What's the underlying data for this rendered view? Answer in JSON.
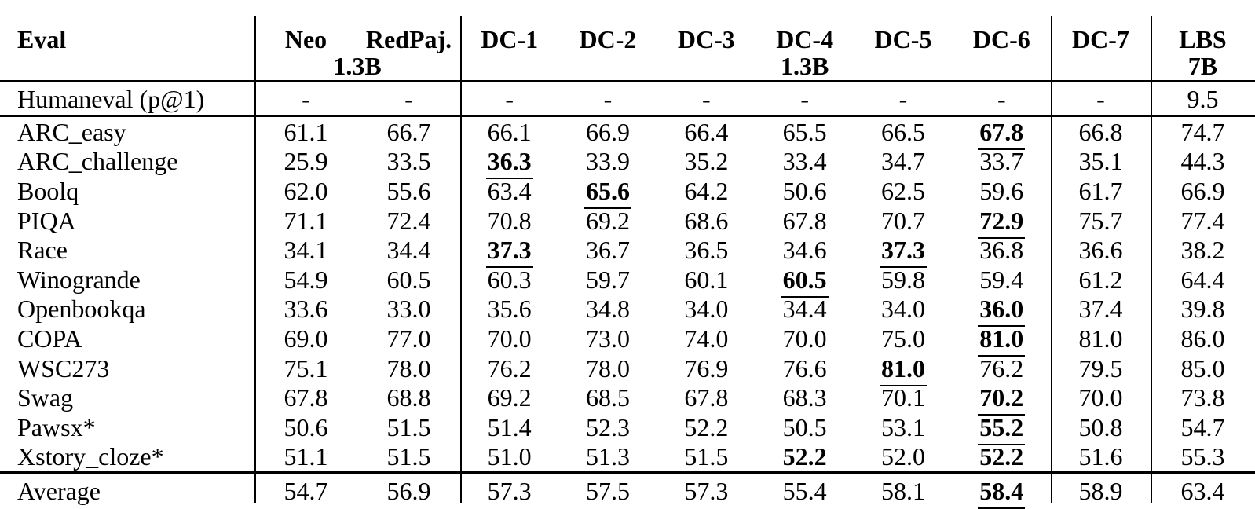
{
  "table": {
    "header": {
      "eval_label": "Eval",
      "columns": [
        {
          "label": "Neo"
        },
        {
          "label": "RedPaj."
        },
        {
          "label": "DC-1"
        },
        {
          "label": "DC-2"
        },
        {
          "label": "DC-3"
        },
        {
          "label": "DC-4"
        },
        {
          "label": "DC-5"
        },
        {
          "label": "DC-6"
        },
        {
          "label": "DC-7"
        },
        {
          "label": "LBS"
        }
      ],
      "subs": {
        "baseline_group": "1.3B",
        "dc4": "1.3B",
        "lbs": "7B"
      }
    },
    "rows": [
      {
        "label": "Humaneval (p@1)",
        "values": [
          "-",
          "-",
          "-",
          "-",
          "-",
          "-",
          "-",
          "-",
          "-",
          "9.5"
        ]
      },
      {
        "label": "ARC_easy",
        "values": [
          "61.1",
          "66.7",
          "66.1",
          "66.9",
          "66.4",
          "65.5",
          "66.5",
          {
            "v": "67.8",
            "best": true
          },
          "66.8",
          "74.7"
        ]
      },
      {
        "label": "ARC_challenge",
        "values": [
          "25.9",
          "33.5",
          {
            "v": "36.3",
            "best": true
          },
          "33.9",
          "35.2",
          "33.4",
          "34.7",
          "33.7",
          "35.1",
          "44.3"
        ]
      },
      {
        "label": "Boolq",
        "values": [
          "62.0",
          "55.6",
          "63.4",
          {
            "v": "65.6",
            "best": true
          },
          "64.2",
          "50.6",
          "62.5",
          "59.6",
          "61.7",
          "66.9"
        ]
      },
      {
        "label": "PIQA",
        "values": [
          "71.1",
          "72.4",
          "70.8",
          "69.2",
          "68.6",
          "67.8",
          "70.7",
          {
            "v": "72.9",
            "best": true
          },
          "75.7",
          "77.4"
        ]
      },
      {
        "label": "Race",
        "values": [
          "34.1",
          "34.4",
          {
            "v": "37.3",
            "best": true
          },
          "36.7",
          "36.5",
          "34.6",
          {
            "v": "37.3",
            "best": true
          },
          "36.8",
          "36.6",
          "38.2"
        ]
      },
      {
        "label": "Winogrande",
        "values": [
          "54.9",
          "60.5",
          "60.3",
          "59.7",
          "60.1",
          {
            "v": "60.5",
            "best": true
          },
          "59.8",
          "59.4",
          "61.2",
          "64.4"
        ]
      },
      {
        "label": "Openbookqa",
        "values": [
          "33.6",
          "33.0",
          "35.6",
          "34.8",
          "34.0",
          "34.4",
          "34.0",
          {
            "v": "36.0",
            "best": true
          },
          "37.4",
          "39.8"
        ]
      },
      {
        "label": "COPA",
        "values": [
          "69.0",
          "77.0",
          "70.0",
          "73.0",
          "74.0",
          "70.0",
          "75.0",
          {
            "v": "81.0",
            "best": true
          },
          "81.0",
          "86.0"
        ]
      },
      {
        "label": "WSC273",
        "values": [
          "75.1",
          "78.0",
          "76.2",
          "78.0",
          "76.9",
          "76.6",
          {
            "v": "81.0",
            "best": true
          },
          "76.2",
          "79.5",
          "85.0"
        ]
      },
      {
        "label": "Swag",
        "values": [
          "67.8",
          "68.8",
          "69.2",
          "68.5",
          "67.8",
          "68.3",
          "70.1",
          {
            "v": "70.2",
            "best": true
          },
          "70.0",
          "73.8"
        ]
      },
      {
        "label": "Pawsx*",
        "values": [
          "50.6",
          "51.5",
          "51.4",
          "52.3",
          "52.2",
          "50.5",
          "53.1",
          {
            "v": "55.2",
            "best": true
          },
          "50.8",
          "54.7"
        ]
      },
      {
        "label": "Xstory_cloze*",
        "values": [
          "51.1",
          "51.5",
          "51.0",
          "51.3",
          "51.5",
          {
            "v": "52.2",
            "best": true
          },
          "52.0",
          {
            "v": "52.2",
            "best": true
          },
          "51.6",
          "55.3"
        ]
      },
      {
        "label": "Average",
        "values": [
          "54.7",
          "56.9",
          "57.3",
          "57.5",
          "57.3",
          "55.4",
          "58.1",
          {
            "v": "58.4",
            "best": true
          },
          "58.9",
          "63.4"
        ]
      }
    ]
  }
}
